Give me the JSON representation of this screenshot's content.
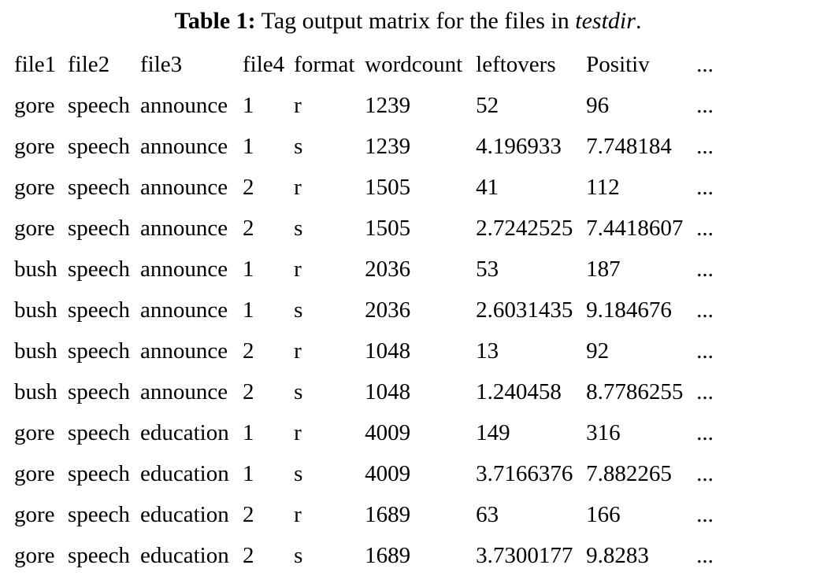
{
  "caption": {
    "label": "Table 1:",
    "text_before": " Tag output matrix for the files in ",
    "emphasis": "testdir",
    "text_after": "."
  },
  "table": {
    "headers": [
      "file1",
      "file2",
      "file3",
      "file4",
      "format",
      "wordcount",
      "leftovers",
      "Positiv",
      "..."
    ],
    "rows": [
      [
        "gore",
        "speech",
        "announce",
        "1",
        "r",
        "1239",
        "52",
        "96",
        "..."
      ],
      [
        "gore",
        "speech",
        "announce",
        "1",
        "s",
        "1239",
        "4.196933",
        "7.748184",
        "..."
      ],
      [
        "gore",
        "speech",
        "announce",
        "2",
        "r",
        "1505",
        "41",
        "112",
        "..."
      ],
      [
        "gore",
        "speech",
        "announce",
        "2",
        "s",
        "1505",
        "2.7242525",
        "7.4418607",
        "..."
      ],
      [
        "bush",
        "speech",
        "announce",
        "1",
        "r",
        "2036",
        "53",
        "187",
        "..."
      ],
      [
        "bush",
        "speech",
        "announce",
        "1",
        "s",
        "2036",
        "2.6031435",
        "9.184676",
        "..."
      ],
      [
        "bush",
        "speech",
        "announce",
        "2",
        "r",
        "1048",
        "13",
        "92",
        "..."
      ],
      [
        "bush",
        "speech",
        "announce",
        "2",
        "s",
        "1048",
        "1.240458",
        "8.7786255",
        "..."
      ],
      [
        "gore",
        "speech",
        "education",
        "1",
        "r",
        "4009",
        "149",
        "316",
        "..."
      ],
      [
        "gore",
        "speech",
        "education",
        "1",
        "s",
        "4009",
        "3.7166376",
        "7.882265",
        "..."
      ],
      [
        "gore",
        "speech",
        "education",
        "2",
        "r",
        "1689",
        "63",
        "166",
        "..."
      ],
      [
        "gore",
        "speech",
        "education",
        "2",
        "s",
        "1689",
        "3.7300177",
        "9.8283",
        "..."
      ]
    ]
  }
}
